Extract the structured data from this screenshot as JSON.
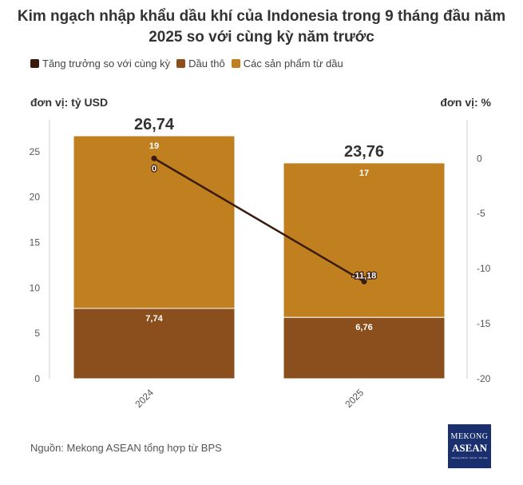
{
  "title_line1": "Kim ngạch nhập khẩu dầu khí của Indonesia trong 9 tháng đầu năm",
  "title_line2": "2025 so với cùng kỳ năm trước",
  "unit_left": "đơn vị: tỷ USD",
  "unit_right": "đơn vị: %",
  "source": "Nguồn: Mekong ASEAN tổng hợp từ BPS",
  "logo": {
    "line1": "MEKONG",
    "line2": "ASEAN",
    "line3": "Mekong ASEAN · Kết nối · Hội nhập"
  },
  "colors": {
    "growth": "#3a1a0d",
    "crude": "#8a4f1c",
    "products": "#c0801f"
  },
  "chart_data": {
    "type": "bar",
    "stacked": true,
    "categories": [
      "2024",
      "2025"
    ],
    "series": [
      {
        "name": "Dầu thô",
        "values": [
          7.74,
          6.76
        ],
        "labels": [
          "7,74",
          "6,76"
        ],
        "color": "#8a4f1c"
      },
      {
        "name": "Các sản phẩm từ dầu",
        "values": [
          19,
          17
        ],
        "labels": [
          "19",
          "17"
        ],
        "color": "#c0801f"
      }
    ],
    "totals": [
      26.74,
      23.76
    ],
    "total_labels": [
      "26,74",
      "23,76"
    ],
    "line_series": {
      "name": "Tăng trưởng so với cùng kỳ",
      "axis": "right",
      "values": [
        0,
        -11.18
      ],
      "labels": [
        "0",
        "-11,18"
      ],
      "color": "#3a1a0d"
    },
    "legend": [
      "Tăng trưởng so với cùng kỳ",
      "Dầu thô",
      "Các sản phẩm từ dầu"
    ],
    "legend_position": "top-left",
    "ylim_left": [
      0,
      28.5
    ],
    "yticks_left": [
      0,
      5,
      10,
      15,
      20,
      25
    ],
    "ylim_right": [
      -20,
      3.5
    ],
    "yticks_right": [
      0,
      -5,
      -10,
      -15,
      -20
    ],
    "grid": false
  }
}
